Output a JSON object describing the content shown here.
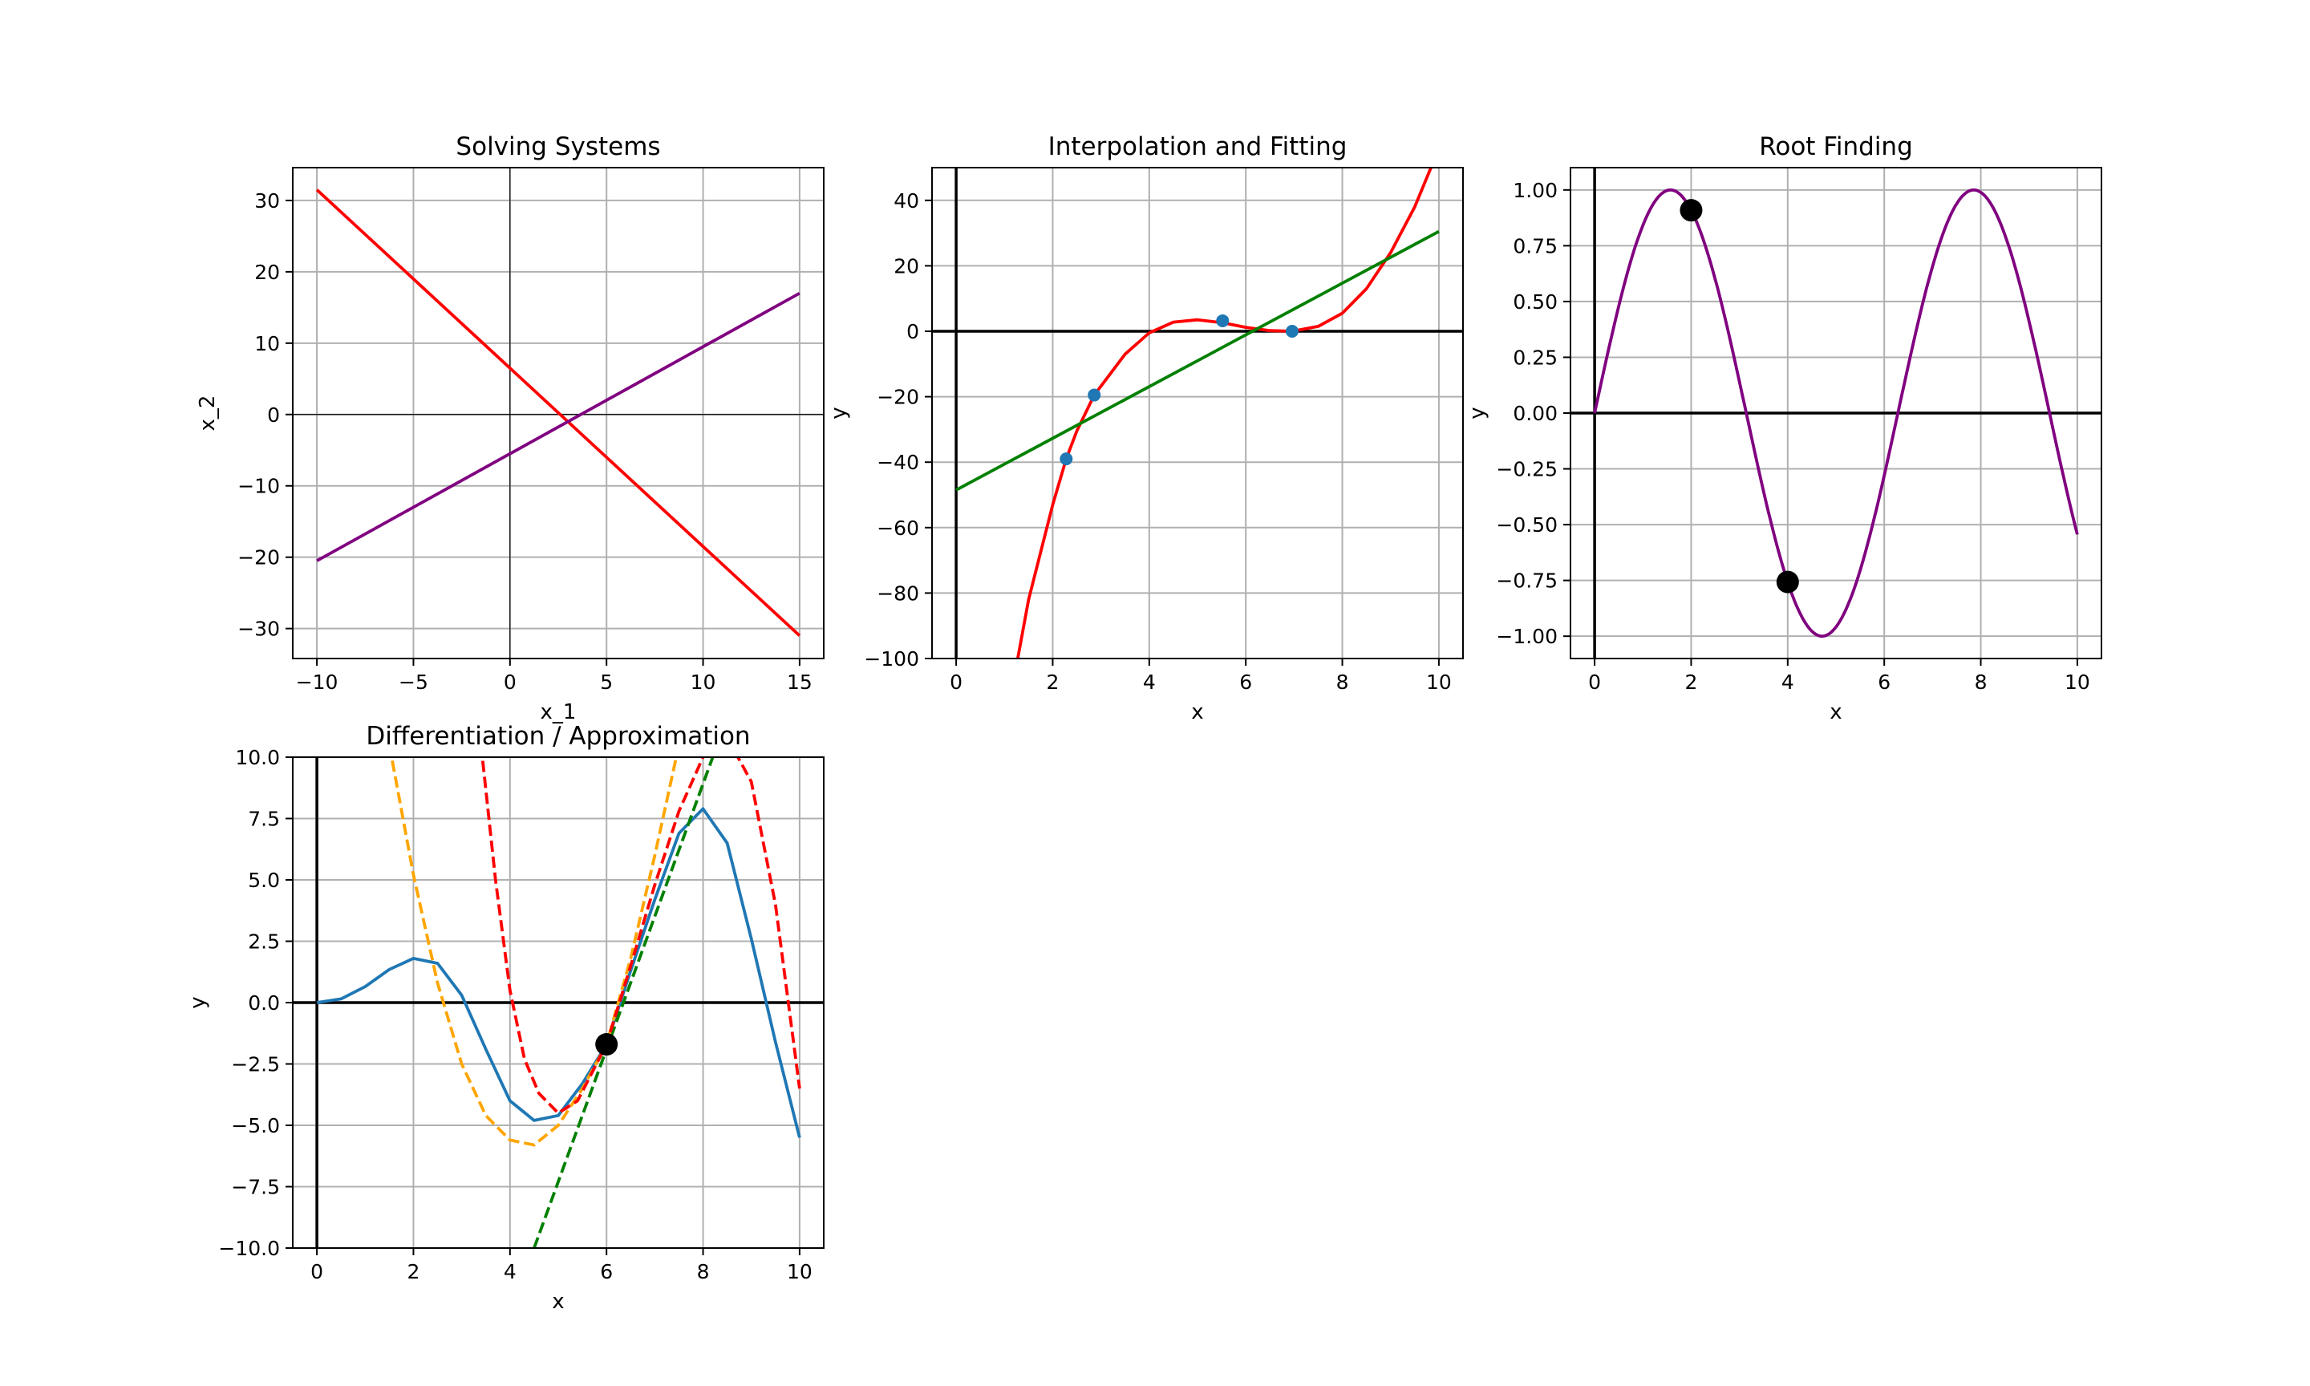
{
  "figure": {
    "background": "#ffffff"
  },
  "chart_data": [
    {
      "type": "line",
      "title": "Solving Systems",
      "xlabel": "x_1",
      "ylabel": "x_2",
      "xlim": [
        -11.25,
        16.25
      ],
      "ylim": [
        -34.2,
        34.6
      ],
      "xticks": [
        -10,
        -5,
        0,
        5,
        10,
        15
      ],
      "yticks": [
        -30,
        -20,
        -10,
        0,
        10,
        20,
        30
      ],
      "grid": true,
      "axes_lines": {
        "color": "#000000",
        "thin": true
      },
      "series": [
        {
          "color": "#ff0000",
          "x": [
            -10,
            15
          ],
          "y": [
            31.5,
            -31
          ]
        },
        {
          "color": "#800080",
          "x": [
            -10,
            15
          ],
          "y": [
            -20.5,
            17
          ]
        }
      ]
    },
    {
      "type": "line",
      "title": "Interpolation and Fitting",
      "xlabel": "x",
      "ylabel": "y",
      "xlim": [
        -0.5,
        10.5
      ],
      "ylim": [
        -100,
        50
      ],
      "xticks": [
        0,
        2,
        4,
        6,
        8,
        10
      ],
      "yticks": [
        -100,
        -80,
        -60,
        -40,
        -20,
        0,
        20,
        40
      ],
      "grid": true,
      "axes_lines": {
        "color": "#000000",
        "thin": false
      },
      "series": [
        {
          "color": "#ff0000",
          "style": "cubic-fit",
          "x": [
            1.0,
            1.5,
            2.0,
            2.28,
            2.5,
            2.86,
            3.5,
            4.0,
            4.5,
            5.0,
            5.52,
            6.0,
            6.5,
            6.96,
            7.5,
            8.0,
            8.5,
            9.0,
            9.5,
            9.92
          ],
          "y": [
            -122,
            -82,
            -53,
            -39,
            -30.5,
            -19.5,
            -7,
            -0.5,
            2.8,
            3.5,
            2.6,
            1.2,
            0.2,
            0.0,
            1.5,
            5.5,
            13,
            24,
            38,
            53
          ]
        },
        {
          "color": "#008000",
          "style": "linear-fit",
          "x": [
            0,
            10
          ],
          "y": [
            -48.5,
            30.5
          ]
        },
        {
          "color": "#1f77b4",
          "style": "points",
          "x": [
            2.28,
            2.86,
            5.52,
            6.96
          ],
          "y": [
            -39,
            -19.5,
            3.2,
            0.0
          ]
        }
      ]
    },
    {
      "type": "line",
      "title": "Root Finding",
      "xlabel": "x",
      "ylabel": "y",
      "xlim": [
        -0.5,
        10.5
      ],
      "ylim": [
        -1.1,
        1.1
      ],
      "xticks": [
        0,
        2,
        4,
        6,
        8,
        10
      ],
      "yticks": [
        -1.0,
        -0.75,
        -0.5,
        -0.25,
        0.0,
        0.25,
        0.5,
        0.75,
        1.0
      ],
      "ytick_labels": [
        "−1.00",
        "−0.75",
        "−0.50",
        "−0.25",
        "0.00",
        "0.25",
        "0.50",
        "0.75",
        "1.00"
      ],
      "grid": true,
      "axes_lines": {
        "color": "#000000",
        "thin": false
      },
      "series": [
        {
          "color": "#800080",
          "function": "sin(x)",
          "x_range": [
            0,
            10
          ]
        },
        {
          "color": "#000000",
          "style": "points",
          "x": [
            2.0,
            4.0
          ],
          "y": [
            0.909,
            -0.757
          ]
        }
      ]
    },
    {
      "type": "line",
      "title": "Differentiation / Approximation",
      "xlabel": "x",
      "ylabel": "y",
      "xlim": [
        -0.5,
        10.5
      ],
      "ylim": [
        -10,
        10
      ],
      "xticks": [
        0,
        2,
        4,
        6,
        8,
        10
      ],
      "yticks": [
        -10.0,
        -7.5,
        -5.0,
        -2.5,
        0.0,
        2.5,
        5.0,
        7.5,
        10.0
      ],
      "ytick_labels": [
        "−10.0",
        "−7.5",
        "−5.0",
        "−2.5",
        "0.0",
        "2.5",
        "5.0",
        "7.5",
        "10.0"
      ],
      "grid": true,
      "axes_lines": {
        "color": "#000000",
        "thin": false
      },
      "series": [
        {
          "color": "#1f77b4",
          "style": "solid",
          "function": "x*sin(x/1.3)*0.85*... (curve)",
          "x": [
            0,
            0.5,
            1.0,
            1.5,
            2.0,
            2.5,
            3.0,
            3.5,
            4.0,
            4.5,
            5.0,
            5.5,
            6.0,
            6.5,
            7.0,
            7.5,
            8.0,
            8.5,
            9.0,
            9.5,
            10.0
          ],
          "y": [
            0,
            0.15,
            0.65,
            1.35,
            1.8,
            1.6,
            0.3,
            -1.9,
            -4.0,
            -4.8,
            -4.6,
            -3.3,
            -1.7,
            1.3,
            4.2,
            6.9,
            7.9,
            6.5,
            2.6,
            -1.6,
            -5.5
          ]
        },
        {
          "color": "#008000",
          "style": "dashed",
          "x": [
            4.5,
            8.2
          ],
          "y": [
            -10,
            10
          ]
        },
        {
          "color": "#ffa500",
          "style": "dashed",
          "x": [
            1.5,
            2.0,
            2.5,
            3.0,
            3.5,
            4.0,
            4.5,
            5.0,
            5.5,
            6.0,
            6.5,
            7.0,
            7.5
          ],
          "y": [
            10.5,
            5.2,
            0.8,
            -2.5,
            -4.6,
            -5.6,
            -5.8,
            -5.0,
            -3.5,
            -1.7,
            1.8,
            6.0,
            10.5
          ]
        },
        {
          "color": "#ff0000",
          "style": "dashed",
          "x": [
            3.4,
            3.7,
            4.0,
            4.3,
            4.6,
            5.0,
            5.4,
            6.0,
            6.5,
            7.0,
            7.5,
            8.0,
            8.5,
            9.0,
            9.5,
            10.0
          ],
          "y": [
            10.5,
            5.0,
            0.5,
            -2.3,
            -3.7,
            -4.5,
            -4.0,
            -1.7,
            1.5,
            4.8,
            7.8,
            10.0,
            10.8,
            9.0,
            4.0,
            -3.5
          ]
        },
        {
          "color": "#000000",
          "style": "points",
          "x": [
            6.0
          ],
          "y": [
            -1.7
          ]
        }
      ]
    }
  ]
}
